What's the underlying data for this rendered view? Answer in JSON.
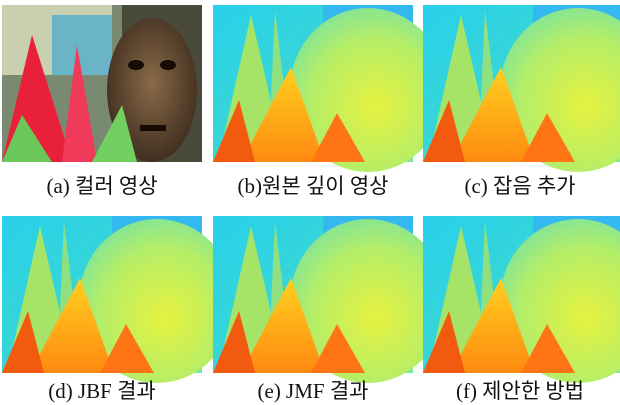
{
  "figure": {
    "panels": [
      {
        "caption": "(a) 컬러 영상"
      },
      {
        "caption": "(b)원본 깊이 영상"
      },
      {
        "caption": "(c) 잡음 추가"
      },
      {
        "caption": "(d) JBF 결과"
      },
      {
        "caption": "(e) JMF 결과"
      },
      {
        "caption": "(f) 제안한 방법"
      }
    ]
  }
}
